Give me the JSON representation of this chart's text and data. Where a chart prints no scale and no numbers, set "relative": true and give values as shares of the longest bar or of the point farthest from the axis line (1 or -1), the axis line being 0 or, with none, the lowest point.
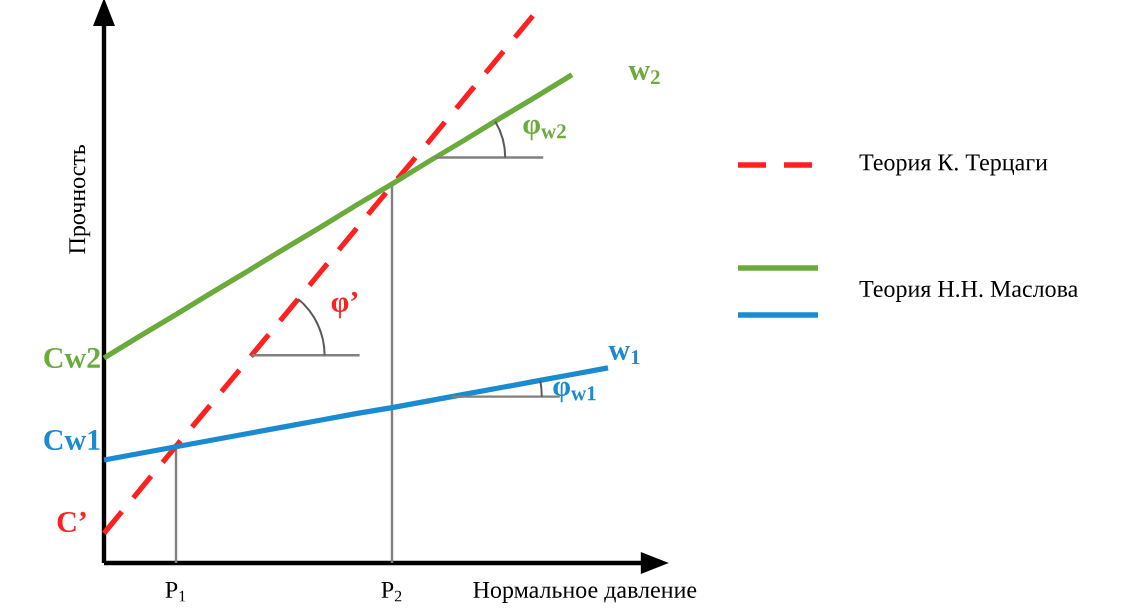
{
  "chart_data": {
    "type": "line",
    "relative": true,
    "xlabel": "Нормальное давление",
    "ylabel": "Прочность",
    "categories": [
      null,
      null,
      "P$_{1}$",
      null,
      null,
      null,
      null,
      null,
      "P$_{2}$",
      null,
      null,
      null,
      null,
      null,
      null
    ],
    "legend": "right",
    "series": [
      {
        "name": "Теория К. Терцаги",
        "color": "#ff2020",
        "line_style": "dashed",
        "values": [
          0.054,
          0.133,
          0.212,
          0.29,
          0.369,
          0.448,
          0.527,
          0.606,
          0.685,
          0.763,
          0.842,
          0.921,
          1.0,
          null,
          null
        ]
      },
      {
        "name": "Теория Н.Н. Маслова",
        "color": "#6aab3c",
        "values": [
          0.372,
          0.412,
          0.451,
          0.491,
          0.53,
          0.57,
          0.609,
          0.649,
          0.688,
          0.728,
          0.767,
          0.807,
          0.846,
          0.886,
          null
        ]
      },
      {
        "color": "#1a8bd0",
        "values": [
          0.187,
          0.199,
          0.211,
          0.223,
          0.235,
          0.247,
          0.259,
          0.271,
          0.282,
          0.294,
          0.306,
          0.318,
          0.33,
          0.342,
          0.354
        ]
      }
    ],
    "ref_lines": [
      {
        "axis": "x",
        "value": "P$_{1}$",
        "color": "#808080"
      },
      {
        "axis": "x",
        "value": "P$_{2}$",
        "color": "#808080"
      }
    ],
    "annotations": [
      "Cw2",
      "Cw1",
      "C’",
      "w$_{2}$",
      "w$_{1}$",
      "φ’",
      "φ$_{w2}$",
      "φ$_{w1}$"
    ]
  }
}
